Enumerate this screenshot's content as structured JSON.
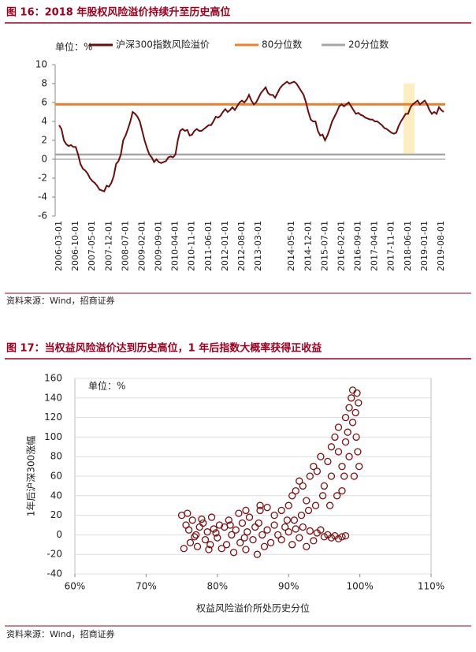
{
  "chart_data": [
    {
      "type": "line",
      "title": "图 16：2018 年股权风险溢价持续升至历史高位",
      "annotation": "单位：%",
      "source": "资料来源：Wind，招商证券",
      "categories": [
        "2006-03-01",
        null,
        null,
        null,
        null,
        null,
        null,
        "2006-10-01",
        null,
        null,
        null,
        null,
        null,
        null,
        "2007-05-01",
        null,
        null,
        null,
        null,
        null,
        null,
        "2007-12-01",
        null,
        null,
        null,
        null,
        null,
        null,
        "2008-07-01",
        null,
        null,
        null,
        null,
        null,
        null,
        "2009-02-01",
        null,
        null,
        null,
        null,
        null,
        null,
        "2009-09-01",
        null,
        null,
        null,
        null,
        null,
        null,
        "2010-04-01",
        null,
        null,
        null,
        null,
        null,
        null,
        "2010-11-01",
        null,
        null,
        null,
        null,
        null,
        null,
        "2011-06-01",
        null,
        null,
        null,
        null,
        null,
        null,
        "2012-01-01",
        null,
        null,
        null,
        null,
        null,
        null,
        "2012-08-01",
        null,
        null,
        null,
        null,
        null,
        null,
        "2013-03-01",
        null,
        null,
        null,
        null,
        null,
        null,
        null,
        null,
        null,
        null,
        null,
        null,
        null,
        "2014-05-01",
        null,
        null,
        null,
        null,
        null,
        null,
        "2014-12-01",
        null,
        null,
        null,
        null,
        null,
        null,
        "2015-07-01",
        null,
        null,
        null,
        null,
        null,
        null,
        "2016-02-01",
        null,
        null,
        null,
        null,
        null,
        null,
        "2016-09-01",
        null,
        null,
        null,
        null,
        null,
        null,
        "2017-04-01",
        null,
        null,
        null,
        null,
        null,
        null,
        "2017-11-01",
        null,
        null,
        null,
        null,
        null,
        null,
        "2018-06-01",
        null,
        null,
        null,
        null,
        null,
        null,
        "2019-01-01",
        null,
        null,
        null,
        null,
        null,
        null,
        "2019-08-01",
        null
      ],
      "series": [
        {
          "name": "沪深300指数风险溢价",
          "color": "#6b0d0d",
          "values": [
            3.6,
            3.2,
            2.0,
            1.6,
            1.4,
            1.5,
            1.3,
            1.3,
            0.5,
            -0.5,
            -1.0,
            -1.2,
            -1.5,
            -2.0,
            -2.3,
            -2.5,
            -2.8,
            -3.2,
            -3.3,
            -3.4,
            -2.8,
            -2.9,
            -2.5,
            -1.8,
            -0.5,
            -0.2,
            0.5,
            2.0,
            2.5,
            3.2,
            4.0,
            5.0,
            4.8,
            4.5,
            4.0,
            3.0,
            2.0,
            1.2,
            0.5,
            0.2,
            -0.3,
            0.0,
            -0.3,
            -0.4,
            -0.3,
            -0.2,
            0.2,
            0.3,
            0.2,
            0.5,
            2.0,
            3.0,
            3.2,
            3.0,
            3.1,
            2.5,
            2.6,
            3.0,
            3.2,
            3.0,
            3.0,
            3.2,
            3.4,
            3.6,
            3.6,
            4.0,
            4.5,
            4.4,
            4.6,
            5.0,
            5.3,
            5.0,
            5.2,
            5.5,
            5.2,
            5.6,
            6.0,
            6.2,
            6.0,
            6.3,
            6.8,
            6.2,
            5.8,
            6.0,
            6.5,
            7.0,
            7.3,
            7.6,
            7.0,
            6.8,
            6.8,
            6.5,
            7.0,
            7.5,
            7.8,
            8.0,
            8.2,
            8.0,
            8.1,
            8.2,
            8.0,
            7.6,
            7.2,
            6.8,
            6.0,
            5.0,
            4.2,
            4.0,
            4.0,
            3.0,
            2.5,
            2.6,
            2.0,
            2.5,
            3.2,
            4.0,
            4.5,
            5.0,
            5.6,
            5.8,
            5.6,
            5.8,
            6.0,
            5.6,
            5.2,
            4.8,
            4.9,
            4.7,
            4.6,
            4.4,
            4.3,
            4.2,
            4.2,
            4.0,
            4.0,
            3.8,
            3.6,
            3.3,
            3.2,
            3.0,
            2.8,
            2.7,
            2.8,
            3.5,
            4.0,
            4.4,
            4.8,
            4.8,
            5.5,
            5.8,
            6.0,
            6.2,
            5.8,
            6.0,
            6.2,
            5.8,
            5.2,
            4.8,
            5.0,
            4.8,
            5.5,
            5.2,
            5.0
          ]
        }
      ],
      "reference_lines": [
        {
          "name": "80分位数",
          "color": "#f07f2b",
          "value": 5.8
        },
        {
          "name": "20分位数",
          "color": "#a6a6a6",
          "value": 0.5
        }
      ],
      "ylim": [
        -6,
        10
      ],
      "yticks": [
        -6,
        -4,
        -2,
        0,
        2,
        4,
        6,
        8,
        10
      ]
    },
    {
      "type": "scatter",
      "title": "图 17：当权益风险溢价达到历史高位，1 年后指数大概率获得正收益",
      "annotation": "单位：%",
      "source": "资料来源：Wind，招商证券",
      "x_label": "权益风险溢价所处历史分位",
      "y_label": "1年后沪深300涨幅",
      "color": "#7b1113",
      "x": [
        75,
        75.3,
        75.6,
        76,
        76.2,
        76.5,
        77,
        77.2,
        77.5,
        78,
        78.3,
        78.6,
        79,
        79.2,
        79.5,
        80,
        80.3,
        80.6,
        75.8,
        76.8,
        77.8,
        78.8,
        79.8,
        81,
        81.3,
        81.6,
        82,
        82.3,
        82.6,
        83,
        83.2,
        83.5,
        84,
        84.2,
        84.5,
        85,
        85.3,
        85.6,
        86,
        86.3,
        86.6,
        81.8,
        83.8,
        85.8,
        87,
        87.5,
        88,
        88.5,
        89,
        89.5,
        90,
        90.5,
        91,
        91.5,
        92,
        92.5,
        93,
        93.5,
        94,
        94.5,
        95,
        95.5,
        96,
        96.5,
        97,
        97.5,
        98,
        88,
        89,
        90,
        90.5,
        91,
        91.5,
        92,
        92.5,
        93,
        93.5,
        94,
        94.5,
        95,
        95.5,
        96,
        96,
        96.5,
        97,
        97,
        97.5,
        97.5,
        98,
        98,
        98.5,
        98.5,
        98.8,
        99,
        99,
        99.2,
        99.4,
        99.5,
        99.6,
        99.7,
        99.8,
        99.9,
        98.3,
        97.8,
        96.8,
        95.8,
        94.8,
        93.8,
        92.8,
        91.8,
        90.8,
        89.8,
        84,
        86,
        87
      ],
      "values": [
        20,
        -14,
        10,
        5,
        -8,
        15,
        0,
        -12,
        8,
        12,
        -5,
        3,
        -10,
        18,
        6,
        -3,
        10,
        -14,
        22,
        -2,
        16,
        -15,
        2,
        8,
        -10,
        15,
        0,
        -18,
        5,
        22,
        -8,
        12,
        -15,
        3,
        18,
        -5,
        8,
        -20,
        25,
        0,
        -12,
        10,
        -3,
        12,
        5,
        -8,
        10,
        0,
        -5,
        8,
        3,
        -10,
        6,
        -3,
        8,
        -12,
        4,
        -6,
        2,
        5,
        -2,
        0,
        -3,
        -1,
        -4,
        -2,
        -1,
        20,
        25,
        30,
        40,
        45,
        55,
        50,
        35,
        60,
        70,
        65,
        80,
        50,
        75,
        60,
        90,
        100,
        85,
        110,
        70,
        45,
        120,
        95,
        130,
        80,
        140,
        148,
        115,
        60,
        125,
        100,
        145,
        85,
        135,
        70,
        105,
        60,
        40,
        30,
        40,
        30,
        25,
        20,
        15,
        15,
        25,
        30,
        28
      ],
      "xlim": [
        60,
        110
      ],
      "xticks": [
        {
          "value": 60,
          "label": "60%"
        },
        {
          "value": 70,
          "label": "70%"
        },
        {
          "value": 80,
          "label": "80%"
        },
        {
          "value": 90,
          "label": "90%"
        },
        {
          "value": 100,
          "label": "100%"
        },
        {
          "value": 110,
          "label": "110%"
        }
      ],
      "ylim": [
        -40,
        160
      ],
      "yticks": [
        -40,
        -20,
        0,
        20,
        40,
        60,
        80,
        100,
        120,
        140,
        160
      ]
    }
  ]
}
